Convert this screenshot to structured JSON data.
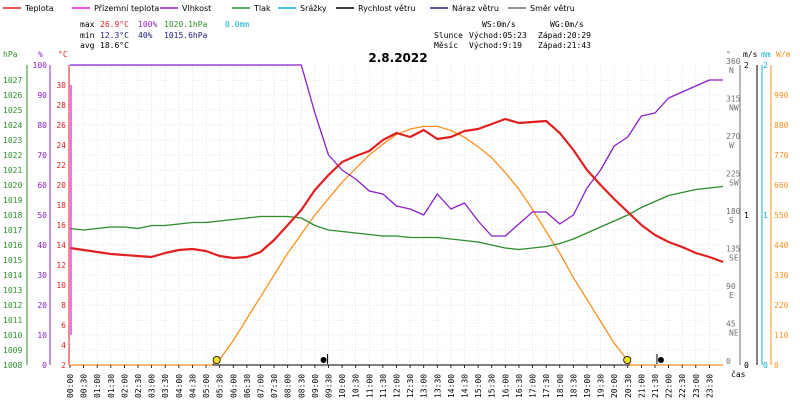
{
  "legend": [
    {
      "label": "Teplota",
      "color": "#e02020"
    },
    {
      "label": "Přízemní teplota",
      "color": "#e020e0"
    },
    {
      "label": "Vlhkost",
      "color": "#8a1ec8"
    },
    {
      "label": "Tlak",
      "color": "#2e8b2e"
    },
    {
      "label": "Srážky",
      "color": "#10b0d0"
    },
    {
      "label": "Rychlost větru",
      "color": "#000000"
    },
    {
      "label": "Náraz větru",
      "color": "#202080"
    },
    {
      "label": "Směr větru",
      "color": "#707070"
    }
  ],
  "stats": {
    "max": {
      "label": "max",
      "temp": "26.9°C",
      "hum": "100%",
      "press": "1020.1hPa",
      "rain": "0.0mm"
    },
    "min": {
      "label": "min",
      "temp": "12.3°C",
      "hum": "40%",
      "press": "1015.6hPa"
    },
    "avg": {
      "label": "avg",
      "temp": "18.6°C"
    }
  },
  "wind_info": {
    "ws": "WS:0m/s",
    "wg": "WG:0m/s"
  },
  "sun": {
    "label": "Slunce",
    "rise": "Východ:05:23",
    "set": "Západ:20:29"
  },
  "moon": {
    "label": "Měsíc",
    "rise": "Východ:9:19",
    "set": "Západ:21:43"
  },
  "date": "2.8.2022",
  "axis_units": {
    "hpa": "hPa",
    "pct": "%",
    "degc": "°C",
    "deg": "°",
    "ms": "m/s",
    "mm": "mm",
    "w": "W/m",
    "cas": "čas"
  },
  "chart_data": {
    "type": "line",
    "date": "2.8.2022",
    "x_unit": "hour",
    "xlim": [
      0,
      24
    ],
    "x_ticks": [
      "00:00",
      "00:30",
      "01:00",
      "01:30",
      "02:00",
      "02:30",
      "03:00",
      "03:30",
      "04:00",
      "04:30",
      "05:00",
      "05:30",
      "06:00",
      "06:30",
      "07:00",
      "07:30",
      "08:00",
      "08:30",
      "09:00",
      "09:30",
      "10:00",
      "10:30",
      "11:00",
      "11:30",
      "12:00",
      "12:30",
      "13:00",
      "13:30",
      "14:00",
      "14:30",
      "15:00",
      "15:30",
      "16:00",
      "16:30",
      "17:00",
      "17:30",
      "18:00",
      "18:30",
      "19:00",
      "19:30",
      "20:00",
      "20:30",
      "21:00",
      "21:30",
      "22:00",
      "22:30",
      "23:00",
      "23:30"
    ],
    "axes": {
      "pressure": {
        "unit": "hPa",
        "ylim": [
          1008,
          1028
        ],
        "ticks": [
          1008,
          1009,
          1010,
          1011,
          1012,
          1013,
          1014,
          1015,
          1016,
          1017,
          1018,
          1019,
          1020,
          1021,
          1022,
          1023,
          1024,
          1025,
          1026,
          1027
        ]
      },
      "humidity": {
        "unit": "%",
        "ylim": [
          0,
          100
        ],
        "ticks": [
          0,
          10,
          20,
          30,
          40,
          50,
          60,
          70,
          80,
          90,
          100
        ]
      },
      "temperature": {
        "unit": "°C",
        "ylim": [
          2,
          32
        ],
        "ticks": [
          2,
          4,
          6,
          8,
          10,
          12,
          14,
          16,
          18,
          20,
          22,
          24,
          26,
          28,
          30
        ]
      },
      "wind_direction": {
        "unit": "°",
        "ylim": [
          0,
          360
        ],
        "ticks": [
          0,
          45,
          90,
          135,
          180,
          225,
          270,
          315,
          360
        ],
        "tick_labels": [
          "",
          "NE",
          "E",
          "SE",
          "S",
          "SW",
          "W",
          "NW",
          "N"
        ]
      },
      "wind_speed": {
        "unit": "m/s",
        "ylim": [
          0,
          2
        ],
        "ticks": [
          0,
          1,
          2
        ],
        "tick_labels": [
          "0",
          "1",
          "2"
        ]
      },
      "rain": {
        "unit": "mm",
        "ylim": [
          0,
          2
        ],
        "ticks": [
          0,
          1,
          2
        ],
        "tick_labels": [
          "0",
          "1",
          "2"
        ]
      },
      "solar": {
        "unit": "W/m",
        "ylim": [
          0,
          1100
        ],
        "ticks": [
          0,
          110,
          220,
          330,
          440,
          550,
          660,
          770,
          880,
          990
        ]
      }
    },
    "series": [
      {
        "name": "Teplota",
        "axis": "temperature",
        "color": "#e02020",
        "x": [
          0,
          0.5,
          1,
          1.5,
          2,
          2.5,
          3,
          3.5,
          4,
          4.5,
          5,
          5.5,
          6,
          6.5,
          7,
          7.5,
          8,
          8.5,
          9,
          9.5,
          10,
          10.5,
          11,
          11.5,
          12,
          12.5,
          13,
          13.5,
          14,
          14.5,
          15,
          15.5,
          16,
          16.5,
          17,
          17.5,
          18,
          18.5,
          19,
          19.5,
          20,
          20.5,
          21,
          21.5,
          22,
          22.5,
          23,
          23.5,
          24
        ],
        "y": [
          13.7,
          13.5,
          13.3,
          13.1,
          13.0,
          12.9,
          12.8,
          13.2,
          13.5,
          13.6,
          13.4,
          12.9,
          12.7,
          12.8,
          13.3,
          14.5,
          16.0,
          17.5,
          19.5,
          21.0,
          22.3,
          22.9,
          23.4,
          24.5,
          25.2,
          24.8,
          25.5,
          24.6,
          24.8,
          25.4,
          25.6,
          26.1,
          26.6,
          26.2,
          26.3,
          26.4,
          25.2,
          23.5,
          21.5,
          20.0,
          18.6,
          17.3,
          16.0,
          15.0,
          14.3,
          13.8,
          13.2,
          12.8,
          12.3
        ]
      },
      {
        "name": "Vlhkost",
        "axis": "humidity",
        "color": "#8a1ec8",
        "x": [
          0,
          0.5,
          1,
          1.5,
          2,
          2.5,
          3,
          3.5,
          4,
          4.5,
          5,
          5.5,
          6,
          6.5,
          7,
          7.5,
          8,
          8.5,
          9,
          9.5,
          10,
          10.5,
          11,
          11.5,
          12,
          12.5,
          13,
          13.5,
          14,
          14.5,
          15,
          15.5,
          16,
          16.5,
          17,
          17.5,
          18,
          18.5,
          19,
          19.5,
          20,
          20.5,
          21,
          21.5,
          22,
          22.5,
          23,
          23.5,
          24
        ],
        "y": [
          100,
          100,
          100,
          100,
          100,
          100,
          100,
          100,
          100,
          100,
          100,
          100,
          100,
          100,
          100,
          100,
          100,
          100,
          84,
          70,
          65,
          62,
          58,
          57,
          53,
          52,
          50,
          57,
          52,
          54,
          48,
          43,
          43,
          47,
          51,
          51,
          47,
          50,
          59,
          65,
          73,
          76,
          83,
          84,
          89,
          91,
          93,
          95,
          95
        ]
      },
      {
        "name": "Tlak",
        "axis": "pressure",
        "color": "#2e8b2e",
        "x": [
          0,
          0.5,
          1,
          1.5,
          2,
          2.5,
          3,
          3.5,
          4,
          4.5,
          5,
          5.5,
          6,
          6.5,
          7,
          7.5,
          8,
          8.5,
          9,
          9.5,
          10,
          10.5,
          11,
          11.5,
          12,
          12.5,
          13,
          13.5,
          14,
          14.5,
          15,
          15.5,
          16,
          16.5,
          17,
          17.5,
          18,
          18.5,
          19,
          19.5,
          20,
          20.5,
          21,
          21.5,
          22,
          22.5,
          23,
          23.5,
          24
        ],
        "y": [
          1017.1,
          1017.0,
          1017.1,
          1017.2,
          1017.2,
          1017.1,
          1017.3,
          1017.3,
          1017.4,
          1017.5,
          1017.5,
          1017.6,
          1017.7,
          1017.8,
          1017.9,
          1017.9,
          1017.9,
          1017.8,
          1017.3,
          1017.0,
          1016.9,
          1016.8,
          1016.7,
          1016.6,
          1016.6,
          1016.5,
          1016.5,
          1016.5,
          1016.4,
          1016.3,
          1016.2,
          1016.0,
          1015.8,
          1015.7,
          1015.8,
          1015.9,
          1016.1,
          1016.4,
          1016.8,
          1017.2,
          1017.6,
          1018.0,
          1018.5,
          1018.9,
          1019.3,
          1019.5,
          1019.7,
          1019.8,
          1019.9
        ]
      },
      {
        "name": "solar",
        "axis": "solar",
        "color": "#ff9020",
        "x": [
          0,
          5.2,
          5.5,
          6,
          6.5,
          7,
          7.5,
          8,
          8.5,
          9,
          9.5,
          10,
          10.5,
          11,
          11.5,
          12,
          12.5,
          13,
          13.5,
          14,
          14.5,
          15,
          15.5,
          16,
          16.5,
          17,
          17.5,
          18,
          18.5,
          19,
          19.5,
          20,
          20.5,
          20.6,
          24
        ],
        "y": [
          0,
          0,
          20,
          90,
          170,
          250,
          330,
          410,
          480,
          550,
          610,
          670,
          720,
          770,
          810,
          845,
          865,
          875,
          875,
          860,
          835,
          800,
          760,
          705,
          645,
          570,
          490,
          410,
          320,
          240,
          160,
          80,
          15,
          0,
          0
        ]
      }
    ],
    "markers": [
      {
        "name": "sunrise",
        "x": 5.39,
        "color": "#f0e020"
      },
      {
        "name": "moonrise",
        "x": 9.32,
        "color": "#000000"
      },
      {
        "name": "sunset",
        "x": 20.48,
        "color": "#f0e020"
      },
      {
        "name": "moonset",
        "x": 21.72,
        "color": "#000000"
      }
    ]
  }
}
